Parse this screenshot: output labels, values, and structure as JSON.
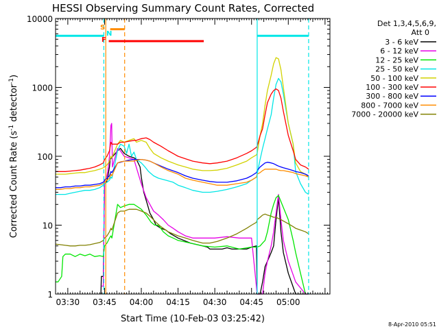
{
  "chart_data": {
    "type": "line",
    "title": "HESSI Observing Summary Count Rates, Corrected",
    "xlabel": "Start Time (10-Feb-03 03:25:42)",
    "ylabel": "Corrected Count Rate (s⁻¹ detector⁻¹)",
    "ylabel_main": "Corrected Count Rate (s",
    "ylabel_sup1": "-1",
    "ylabel_mid": " detector",
    "ylabel_sup2": "-1",
    "ylabel_end": ")",
    "yscale": "log",
    "ylim": [
      1,
      10000
    ],
    "xlim_minutes_after_0325": [
      0,
      112
    ],
    "x_ticks": [
      "03:30",
      "03:45",
      "04:00",
      "04:15",
      "04:30",
      "04:45",
      "05:00"
    ],
    "x_tick_minutes": [
      5,
      20,
      35,
      50,
      65,
      80,
      95
    ],
    "y_ticks": [
      "1",
      "10",
      "100",
      "1000",
      "10000"
    ],
    "y_tick_values": [
      1,
      10,
      100,
      1000,
      10000
    ],
    "timestamp": "8-Apr-2010 05:51",
    "legend": {
      "header1": "Det 1,3,4,5,6,9,",
      "header2": "Att 0",
      "placement": "right",
      "entries": [
        {
          "label": "3 - 6 keV",
          "color": "#000000"
        },
        {
          "label": "6 - 12 keV",
          "color": "#e600e6"
        },
        {
          "label": "12 - 25 keV",
          "color": "#00e600"
        },
        {
          "label": "25 - 50 keV",
          "color": "#00e6e6"
        },
        {
          "label": "50 - 100 keV",
          "color": "#d2d200"
        },
        {
          "label": "100 - 300 keV",
          "color": "#ff0000"
        },
        {
          "label": "300 - 800 keV",
          "color": "#0000ff"
        },
        {
          "label": "800 - 7000 keV",
          "color": "#ff8c00"
        },
        {
          "label": "7000 - 20000 keV",
          "color": "#808000"
        }
      ]
    },
    "flags": [
      {
        "letter": "S",
        "color": "#ff8c00",
        "y": 7000,
        "x_start": 22.3,
        "x_end": 28.2
      },
      {
        "letter": "N",
        "color": "#00e6e6",
        "y": null,
        "x_start": null,
        "x_end": null
      },
      {
        "letter": "F",
        "color": "#ff0000",
        "y": 4700,
        "x_start": 21.7,
        "x_end": 60.5
      }
    ],
    "saa_bars": [
      {
        "color": "#00e6e6",
        "y": 5600,
        "x_start": 0,
        "x_end": 19.7
      },
      {
        "color": "#00e6e6",
        "y": 5600,
        "x_start": 82.3,
        "x_end": 103.3
      }
    ],
    "vlines": [
      {
        "color": "#00e6e6",
        "minute": 19.7,
        "style": "dashed"
      },
      {
        "color": "#00e6e6",
        "minute": 82.3,
        "style": "solid"
      },
      {
        "color": "#00e6e6",
        "minute": 103.3,
        "style": "dashed"
      },
      {
        "color": "#ff8c00",
        "minute": 20.5,
        "style": "solid"
      },
      {
        "color": "#ff8c00",
        "minute": 28.2,
        "style": "dashed"
      }
    ],
    "series": [
      {
        "name": "3 - 6 keV",
        "color": "#000000",
        "x": [
          18.5,
          18.7,
          19.5,
          20.0,
          20.8,
          21.3,
          22.0,
          22.3,
          25.3,
          26.5,
          28.0,
          30.0,
          32.0,
          33.0,
          34.5,
          35.0,
          36.0,
          37.5,
          38.5,
          40.0,
          41.0,
          43.0,
          45.0,
          47.0,
          50.0,
          55.0,
          60.0,
          62.0,
          63.0,
          65.0,
          68.0,
          70.0,
          72.0,
          75.0,
          78.0,
          80.0,
          82.0,
          82.3,
          83.5,
          84.5,
          85.5,
          86.5,
          88.0,
          89.0,
          90.0,
          91.0,
          92.0,
          93.0,
          95.0,
          98.0,
          102.0,
          103.3
        ],
        "y": [
          1,
          1.8,
          1.8,
          40,
          42,
          50,
          70,
          90,
          120,
          130,
          110,
          100,
          95,
          90,
          70,
          50,
          30,
          20,
          15,
          12,
          10,
          9,
          8.5,
          7.5,
          6.5,
          5.5,
          5.0,
          4.8,
          4.5,
          4.5,
          4.5,
          4.7,
          4.5,
          4.5,
          4.5,
          4.8,
          5.0,
          1,
          1,
          1.5,
          2.5,
          3,
          4,
          5,
          12,
          25,
          8,
          4,
          2,
          1,
          1,
          1
        ]
      },
      {
        "name": "6 - 12 keV",
        "color": "#e600e6",
        "x": [
          18.7,
          19.5,
          20.0,
          20.8,
          21.3,
          22.0,
          22.6,
          22.9,
          23.2,
          25.3,
          26.5,
          28.0,
          30.0,
          32.0,
          33.5,
          35.0,
          37.0,
          38.5,
          40.0,
          42.0,
          44.0,
          46.0,
          48.0,
          50.0,
          53.0,
          56.0,
          60.0,
          65.0,
          70.0,
          75.0,
          80.0,
          82.3,
          83.5,
          84.5,
          85.5,
          86.5,
          88.0,
          89.0,
          90.0,
          91.0,
          92.0,
          93.0,
          95.0,
          98.0,
          102.0,
          103.3
        ],
        "y": [
          1.3,
          1.3,
          45,
          50,
          60,
          100,
          280,
          300,
          70,
          130,
          120,
          100,
          95,
          90,
          60,
          40,
          25,
          20,
          16,
          14,
          12,
          10,
          9,
          8,
          7,
          6.5,
          6.5,
          6.5,
          6.8,
          6.5,
          6.5,
          1,
          1,
          1,
          2,
          3,
          5,
          8,
          15,
          28,
          12,
          6,
          3,
          1.5,
          1,
          1
        ]
      },
      {
        "name": "12 - 25 keV",
        "color": "#00e600",
        "x": [
          0.0,
          1.0,
          2.5,
          3.0,
          4.0,
          6.0,
          8.0,
          10.0,
          12.0,
          14.0,
          16.0,
          18.0,
          19.5,
          20.0,
          21.0,
          22.0,
          22.6,
          23.0,
          25.3,
          26.5,
          28.0,
          30.0,
          32.0,
          33.0,
          35.0,
          37.0,
          39.0,
          40.5,
          42.0,
          44.0,
          46.0,
          48.0,
          50.0,
          55.0,
          60.0,
          65.0,
          70.0,
          75.0,
          80.0,
          82.3,
          83.5,
          84.5,
          85.5,
          86.5,
          88.0,
          89.0,
          90.0,
          91.0,
          92.0,
          93.0,
          95.0,
          97.0,
          98.0,
          100.0,
          102.0
        ],
        "y": [
          1.5,
          1.5,
          1.8,
          3.5,
          3.8,
          3.8,
          3.5,
          3.8,
          3.6,
          3.8,
          3.5,
          3.6,
          3.5,
          5,
          5.5,
          6.5,
          7,
          6.5,
          20,
          18,
          19,
          20,
          20,
          19,
          17,
          14,
          11,
          10,
          10,
          8,
          7,
          6.5,
          6.0,
          5.5,
          5.0,
          4.8,
          5.0,
          4.5,
          4.8,
          4.8,
          5,
          5.5,
          6,
          8,
          15,
          20,
          25,
          27,
          22,
          18,
          12,
          6,
          4,
          2,
          1
        ]
      },
      {
        "name": "25 - 50 keV",
        "color": "#00e6e6",
        "x": [
          0.0,
          2.0,
          4.0,
          6.0,
          8.0,
          10.0,
          12.0,
          14.0,
          16.0,
          18.0,
          19.5,
          20.0,
          21.0,
          22.0,
          22.6,
          23.0,
          25.3,
          26.5,
          28.0,
          29.0,
          30.0,
          31.0,
          32.0,
          33.0,
          35.0,
          36.5,
          38.0,
          40.0,
          42.0,
          45.0,
          48.0,
          50.0,
          53.0,
          56.0,
          60.0,
          63.0,
          66.0,
          70.0,
          74.0,
          78.0,
          80.0,
          82.0,
          82.3,
          83.5,
          84.5,
          85.5,
          86.5,
          88.0,
          89.0,
          90.0,
          91.0,
          92.0,
          93.0,
          95.0,
          97.0,
          98.0,
          100.0,
          102.0,
          103.3
        ],
        "y": [
          28,
          28,
          28,
          29,
          30,
          31,
          32,
          32,
          33,
          35,
          38,
          40,
          42,
          45,
          50,
          48,
          120,
          150,
          140,
          110,
          150,
          100,
          115,
          90,
          80,
          70,
          60,
          52,
          48,
          45,
          42,
          38,
          35,
          32,
          30,
          30,
          31,
          33,
          36,
          40,
          45,
          50,
          55,
          90,
          130,
          180,
          250,
          400,
          700,
          1100,
          1350,
          1200,
          800,
          300,
          150,
          60,
          40,
          30,
          28
        ]
      },
      {
        "name": "50 - 100 keV",
        "color": "#d2d200",
        "x": [
          0.0,
          2.0,
          4.0,
          6.0,
          8.0,
          10.0,
          12.0,
          14.0,
          16.0,
          18.0,
          19.5,
          20.0,
          21.0,
          22.0,
          22.6,
          23.0,
          25.3,
          26.5,
          28.0,
          30.0,
          32.0,
          33.0,
          35.0,
          37.0,
          38.5,
          40.0,
          43.0,
          46.0,
          50.0,
          53.0,
          56.0,
          60.0,
          63.0,
          66.0,
          70.0,
          74.0,
          78.0,
          80.0,
          82.0,
          82.3,
          83.5,
          84.5,
          85.5,
          86.5,
          88.0,
          89.0,
          90.0,
          91.0,
          92.0,
          93.0,
          95.0,
          97.0,
          98.0,
          100.0,
          102.0,
          103.3
        ],
        "y": [
          55,
          55,
          55,
          56,
          57,
          58,
          58,
          60,
          62,
          65,
          68,
          70,
          75,
          85,
          100,
          95,
          150,
          170,
          160,
          170,
          180,
          160,
          170,
          160,
          130,
          110,
          95,
          85,
          75,
          70,
          65,
          62,
          62,
          63,
          67,
          75,
          85,
          95,
          105,
          110,
          200,
          300,
          550,
          900,
          1500,
          2200,
          2700,
          2600,
          1800,
          1000,
          300,
          150,
          80,
          60,
          55,
          50
        ]
      },
      {
        "name": "100 - 300 keV",
        "color": "#ff0000",
        "x": [
          0.0,
          2.0,
          4.0,
          6.0,
          8.0,
          10.0,
          12.0,
          14.0,
          16.0,
          18.0,
          19.5,
          20.0,
          21.0,
          22.0,
          22.6,
          23.0,
          25.3,
          26.5,
          28.0,
          30.0,
          32.0,
          33.0,
          35.0,
          37.0,
          38.5,
          40.0,
          43.0,
          46.0,
          50.0,
          53.0,
          56.0,
          60.0,
          63.0,
          66.0,
          70.0,
          74.0,
          78.0,
          80.0,
          82.0,
          82.3,
          83.5,
          84.5,
          85.5,
          86.5,
          88.0,
          89.0,
          90.0,
          91.0,
          92.0,
          93.0,
          95.0,
          97.0,
          98.0,
          100.0,
          102.0,
          103.3
        ],
        "y": [
          60,
          60,
          60,
          61,
          62,
          63,
          65,
          67,
          70,
          75,
          80,
          90,
          100,
          120,
          160,
          150,
          150,
          160,
          160,
          165,
          170,
          170,
          180,
          185,
          175,
          160,
          140,
          120,
          100,
          92,
          85,
          80,
          78,
          80,
          85,
          95,
          110,
          120,
          135,
          140,
          200,
          250,
          400,
          600,
          800,
          900,
          950,
          900,
          700,
          450,
          200,
          120,
          90,
          75,
          70,
          65
        ]
      },
      {
        "name": "300 - 800 keV",
        "color": "#0000ff",
        "x": [
          0.0,
          2.0,
          4.0,
          6.0,
          8.0,
          10.0,
          12.0,
          14.0,
          16.0,
          18.0,
          19.5,
          20.0,
          21.0,
          22.0,
          22.6,
          23.0,
          25.3,
          26.5,
          28.0,
          30.0,
          32.0,
          33.0,
          35.0,
          37.0,
          38.5,
          40.0,
          43.0,
          46.0,
          50.0,
          53.0,
          56.0,
          60.0,
          63.0,
          66.0,
          70.0,
          74.0,
          78.0,
          80.0,
          82.0,
          82.3,
          83.5,
          84.5,
          85.5,
          86.5,
          88.0,
          89.0,
          90.0,
          91.0,
          92.0,
          93.0,
          95.0,
          97.0,
          98.0,
          100.0,
          102.0,
          103.3
        ],
        "y": [
          35,
          35,
          36,
          36,
          37,
          37,
          38,
          38,
          39,
          40,
          42,
          45,
          48,
          52,
          60,
          58,
          80,
          82,
          85,
          88,
          90,
          90,
          90,
          88,
          85,
          80,
          72,
          65,
          58,
          52,
          48,
          45,
          43,
          42,
          42,
          44,
          48,
          52,
          58,
          62,
          70,
          75,
          80,
          82,
          80,
          78,
          75,
          72,
          70,
          68,
          65,
          62,
          60,
          58,
          55,
          52
        ]
      },
      {
        "name": "800 - 7000 keV",
        "color": "#ff8c00",
        "x": [
          0.0,
          2.0,
          4.0,
          6.0,
          8.0,
          10.0,
          12.0,
          14.0,
          16.0,
          18.0,
          19.5,
          20.0,
          21.0,
          22.0,
          22.6,
          23.0,
          25.3,
          26.5,
          28.0,
          30.0,
          32.0,
          33.0,
          35.0,
          37.0,
          38.5,
          40.0,
          43.0,
          46.0,
          50.0,
          53.0,
          56.0,
          60.0,
          63.0,
          66.0,
          70.0,
          74.0,
          78.0,
          80.0,
          82.0,
          82.3,
          83.5,
          84.5,
          85.5,
          86.5,
          88.0,
          89.0,
          90.0,
          91.0,
          92.0,
          93.0,
          95.0,
          97.0,
          98.0,
          100.0,
          102.0,
          103.3
        ],
        "y": [
          33,
          33,
          34,
          34,
          35,
          35,
          36,
          36,
          37,
          38,
          40,
          42,
          45,
          48,
          55,
          52,
          80,
          83,
          85,
          85,
          85,
          88,
          90,
          88,
          85,
          80,
          70,
          62,
          55,
          48,
          45,
          42,
          40,
          38,
          38,
          40,
          42,
          45,
          50,
          55,
          58,
          62,
          65,
          65,
          65,
          65,
          65,
          63,
          62,
          62,
          60,
          58,
          56,
          54,
          52,
          50
        ]
      },
      {
        "name": "7000 - 20000 keV",
        "color": "#808000",
        "x": [
          0.0,
          2.0,
          4.0,
          6.0,
          8.0,
          10.0,
          12.0,
          14.0,
          16.0,
          18.0,
          19.5,
          20.0,
          21.0,
          22.0,
          22.6,
          23.0,
          25.3,
          26.5,
          28.0,
          30.0,
          32.0,
          33.0,
          35.0,
          37.0,
          39.0,
          41.0,
          43.0,
          46.0,
          50.0,
          53.0,
          56.0,
          60.0,
          63.0,
          66.0,
          70.0,
          74.0,
          78.0,
          80.0,
          82.0,
          82.3,
          83.5,
          84.5,
          85.5,
          86.5,
          88.0,
          89.0,
          90.0,
          91.0,
          92.0,
          93.0,
          95.0,
          97.0,
          98.0,
          100.0,
          102.0,
          103.3
        ],
        "y": [
          5.3,
          5.2,
          5.1,
          5.0,
          5.0,
          5.1,
          5.1,
          5.2,
          5.4,
          5.6,
          6.0,
          6.5,
          7.0,
          8.0,
          9.0,
          8.5,
          15,
          16,
          16,
          17,
          17,
          17,
          16,
          15,
          13,
          11,
          9.5,
          8,
          7,
          6.5,
          6,
          5.5,
          5.5,
          5.8,
          6.5,
          7.5,
          9,
          10,
          11,
          12,
          13,
          14,
          14.5,
          14,
          13.5,
          13,
          13,
          12.5,
          12,
          11.5,
          10.5,
          9.5,
          9,
          8.5,
          8,
          7.5
        ]
      }
    ]
  }
}
